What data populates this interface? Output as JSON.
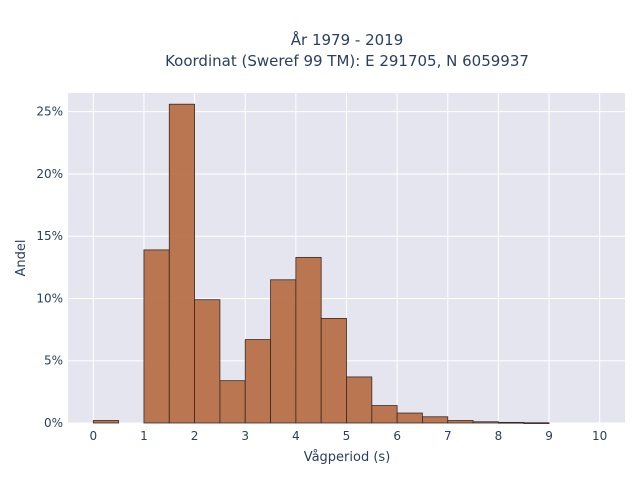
{
  "chart_data": {
    "type": "bar",
    "title_line1": "År 1979 - 2019",
    "title_line2": "Koordinat (Sweref 99 TM): E 291705, N 6059937",
    "xlabel": "Vågperiod (s)",
    "ylabel": "Andel",
    "xlim": [
      -0.5,
      10.5
    ],
    "ylim": [
      0,
      26.5
    ],
    "x_ticks": [
      0,
      1,
      2,
      3,
      4,
      5,
      6,
      7,
      8,
      9,
      10
    ],
    "x_tick_labels": [
      "0",
      "1",
      "2",
      "3",
      "4",
      "5",
      "6",
      "7",
      "8",
      "9",
      "10"
    ],
    "y_ticks": [
      0,
      5,
      10,
      15,
      20,
      25
    ],
    "y_tick_labels": [
      "0%",
      "5%",
      "10%",
      "15%",
      "20%",
      "25%"
    ],
    "bin_width": 0.5,
    "bin_starts": [
      0,
      0.5,
      1,
      1.5,
      2,
      2.5,
      3,
      3.5,
      4,
      4.5,
      5,
      5.5,
      6,
      6.5,
      7,
      7.5,
      8,
      8.5,
      9,
      9.5
    ],
    "values": [
      0.2,
      0,
      13.9,
      25.6,
      9.9,
      3.4,
      6.7,
      11.5,
      13.3,
      8.4,
      3.7,
      1.4,
      0.8,
      0.5,
      0.2,
      0.1,
      0.05,
      0.02,
      0,
      0
    ],
    "grid": true,
    "legend": "none",
    "colors": {
      "bar": "#b5683f",
      "plot_bg": "#e5e5ef",
      "text": "#2a3f5f"
    }
  }
}
